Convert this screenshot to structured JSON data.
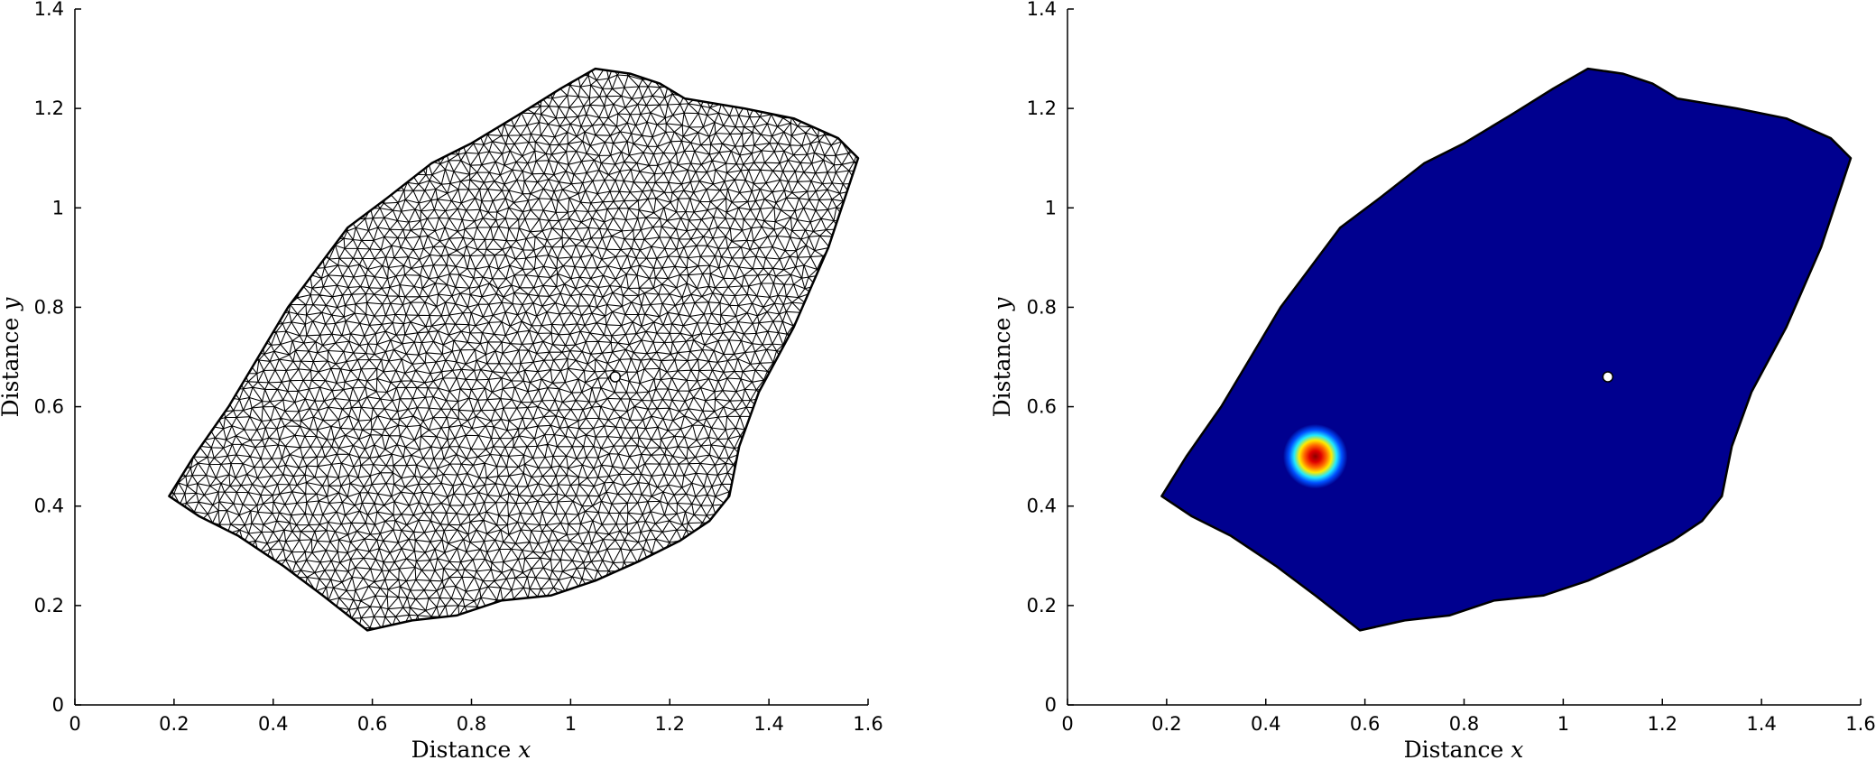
{
  "chart_data": [
    {
      "type": "mesh",
      "title": "",
      "xlabel": "Distance",
      "xlabel_var": "x",
      "ylabel": "Distance",
      "ylabel_var": "y",
      "xlim": [
        0,
        1.6
      ],
      "ylim": [
        0,
        1.4
      ],
      "xticks": [
        "0",
        "0.2",
        "0.4",
        "0.6",
        "0.8",
        "1",
        "1.2",
        "1.4",
        "1.6"
      ],
      "yticks": [
        "0",
        "0.2",
        "0.4",
        "0.6",
        "0.8",
        "1",
        "1.2",
        "1.4"
      ],
      "grid": false,
      "colors": {
        "mesh_edges": "#000000",
        "fill": "#ffffff"
      },
      "domain_boundary": [
        [
          0.19,
          0.42
        ],
        [
          0.25,
          0.38
        ],
        [
          0.33,
          0.34
        ],
        [
          0.42,
          0.28
        ],
        [
          0.5,
          0.22
        ],
        [
          0.59,
          0.15
        ],
        [
          0.68,
          0.17
        ],
        [
          0.77,
          0.18
        ],
        [
          0.86,
          0.21
        ],
        [
          0.96,
          0.22
        ],
        [
          1.05,
          0.25
        ],
        [
          1.14,
          0.29
        ],
        [
          1.22,
          0.33
        ],
        [
          1.28,
          0.37
        ],
        [
          1.32,
          0.42
        ],
        [
          1.34,
          0.52
        ],
        [
          1.38,
          0.63
        ],
        [
          1.45,
          0.76
        ],
        [
          1.52,
          0.92
        ],
        [
          1.58,
          1.1
        ],
        [
          1.54,
          1.14
        ],
        [
          1.45,
          1.18
        ],
        [
          1.35,
          1.2
        ],
        [
          1.23,
          1.22
        ],
        [
          1.18,
          1.25
        ],
        [
          1.12,
          1.27
        ],
        [
          1.05,
          1.28
        ],
        [
          0.98,
          1.24
        ],
        [
          0.9,
          1.19
        ],
        [
          0.8,
          1.13
        ],
        [
          0.72,
          1.09
        ],
        [
          0.63,
          1.02
        ],
        [
          0.55,
          0.96
        ],
        [
          0.49,
          0.88
        ],
        [
          0.43,
          0.8
        ],
        [
          0.37,
          0.7
        ],
        [
          0.31,
          0.6
        ],
        [
          0.24,
          0.5
        ]
      ],
      "marker": {
        "x": 1.09,
        "y": 0.66
      }
    },
    {
      "type": "heatmap",
      "title": "",
      "xlabel": "Distance",
      "xlabel_var": "x",
      "ylabel": "Distance",
      "ylabel_var": "y",
      "xlim": [
        0,
        1.6
      ],
      "ylim": [
        0,
        1.4
      ],
      "xticks": [
        "0",
        "0.2",
        "0.4",
        "0.6",
        "0.8",
        "1",
        "1.2",
        "1.4",
        "1.6"
      ],
      "yticks": [
        "0",
        "0.2",
        "0.4",
        "0.6",
        "0.8",
        "1",
        "1.2",
        "1.4"
      ],
      "grid": false,
      "colormap": [
        "#8b0000",
        "#ff0000",
        "#ffa500",
        "#ffff00",
        "#00ffff",
        "#0060ff",
        "#00008f"
      ],
      "background_color": "#00008f",
      "gaussian_source": {
        "x": 0.5,
        "y": 0.5,
        "radius": 0.065
      },
      "marker": {
        "x": 1.09,
        "y": 0.66
      }
    }
  ]
}
